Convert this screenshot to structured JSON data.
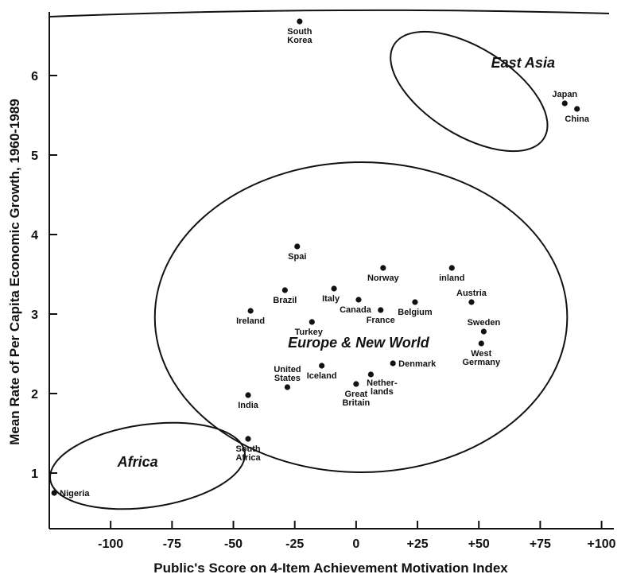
{
  "chart_data": {
    "type": "scatter",
    "xlabel": "Public's Score on 4-Item Achievement Motivation Index",
    "ylabel": "Mean Rate of Per Capita Economic Growth, 1960-1989",
    "xlim": [
      -125,
      105
    ],
    "ylim": [
      0.3,
      6.8
    ],
    "x_ticks": [
      {
        "value": -100,
        "label": "-100"
      },
      {
        "value": -75,
        "label": "-75"
      },
      {
        "value": -50,
        "label": "-50"
      },
      {
        "value": -25,
        "label": "-25"
      },
      {
        "value": 0,
        "label": "0"
      },
      {
        "value": 25,
        "label": "+25"
      },
      {
        "value": 50,
        "label": "+50"
      },
      {
        "value": 75,
        "label": "+75"
      },
      {
        "value": 100,
        "label": "+100"
      }
    ],
    "y_ticks": [
      {
        "value": 1,
        "label": "1"
      },
      {
        "value": 2,
        "label": "2"
      },
      {
        "value": 3,
        "label": "3"
      },
      {
        "value": 4,
        "label": "4"
      },
      {
        "value": 5,
        "label": "5"
      },
      {
        "value": 6,
        "label": "6"
      }
    ],
    "grid": false,
    "points": [
      {
        "label": "South Korea",
        "lines": [
          "South",
          "Korea"
        ],
        "x": -23,
        "y": 6.68,
        "pos": "below"
      },
      {
        "label": "Japan",
        "lines": [
          "Japan"
        ],
        "x": 85,
        "y": 5.65,
        "pos": "above"
      },
      {
        "label": "China",
        "lines": [
          "China"
        ],
        "x": 90,
        "y": 5.58,
        "pos": "below"
      },
      {
        "label": "Spai",
        "lines": [
          "Spai"
        ],
        "x": -24,
        "y": 3.85,
        "pos": "below"
      },
      {
        "label": "Norway",
        "lines": [
          "Norway"
        ],
        "x": 11,
        "y": 3.58,
        "pos": "below"
      },
      {
        "label": "inland",
        "lines": [
          "inland"
        ],
        "x": 39,
        "y": 3.58,
        "pos": "below"
      },
      {
        "label": "Brazil",
        "lines": [
          "Brazil"
        ],
        "x": -29,
        "y": 3.3,
        "pos": "below"
      },
      {
        "label": "Italy",
        "lines": [
          "Italy"
        ],
        "x": -9,
        "y": 3.32,
        "pos": "below-left"
      },
      {
        "label": "Canada",
        "lines": [
          "Canada"
        ],
        "x": 1,
        "y": 3.18,
        "pos": "below-left"
      },
      {
        "label": "Austria",
        "lines": [
          "Austria"
        ],
        "x": 47,
        "y": 3.15,
        "pos": "above"
      },
      {
        "label": "Belgium",
        "lines": [
          "Belgium"
        ],
        "x": 24,
        "y": 3.15,
        "pos": "below"
      },
      {
        "label": "France",
        "lines": [
          "France"
        ],
        "x": 10,
        "y": 3.05,
        "pos": "below"
      },
      {
        "label": "Ireland",
        "lines": [
          "Ireland"
        ],
        "x": -43,
        "y": 3.04,
        "pos": "below"
      },
      {
        "label": "Turkey",
        "lines": [
          "Turkey"
        ],
        "x": -18,
        "y": 2.9,
        "pos": "below-left"
      },
      {
        "label": "Sweden",
        "lines": [
          "Sweden"
        ],
        "x": 52,
        "y": 2.78,
        "pos": "above"
      },
      {
        "label": "West Germany",
        "lines": [
          "West",
          "Germany"
        ],
        "x": 51,
        "y": 2.63,
        "pos": "below"
      },
      {
        "label": "Denmark",
        "lines": [
          "Denmark"
        ],
        "x": 15,
        "y": 2.38,
        "pos": "right"
      },
      {
        "label": "Iceland",
        "lines": [
          "Iceland"
        ],
        "x": -14,
        "y": 2.35,
        "pos": "below"
      },
      {
        "label": "Netherlands",
        "lines": [
          "Nether-",
          "lands"
        ],
        "x": 6,
        "y": 2.24,
        "pos": "below-right"
      },
      {
        "label": "Great Britain",
        "lines": [
          "Great",
          "Britain"
        ],
        "x": 0,
        "y": 2.12,
        "pos": "below"
      },
      {
        "label": "United States",
        "lines": [
          "United",
          "States"
        ],
        "x": -28,
        "y": 2.08,
        "pos": "above"
      },
      {
        "label": "India",
        "lines": [
          "India"
        ],
        "x": -44,
        "y": 1.98,
        "pos": "below"
      },
      {
        "label": "South Africa",
        "lines": [
          "South",
          "Africa"
        ],
        "x": -44,
        "y": 1.43,
        "pos": "below"
      },
      {
        "label": "Nigeria",
        "lines": [
          "Nigeria"
        ],
        "x": -123,
        "y": 0.75,
        "pos": "right"
      }
    ],
    "groups": [
      {
        "label": "East Asia",
        "label_x": 68,
        "label_y": 6.1
      },
      {
        "label": "Europe & New World",
        "label_x": 1,
        "label_y": 2.58
      },
      {
        "label": "Africa",
        "label_x": -89,
        "label_y": 1.08
      }
    ]
  }
}
